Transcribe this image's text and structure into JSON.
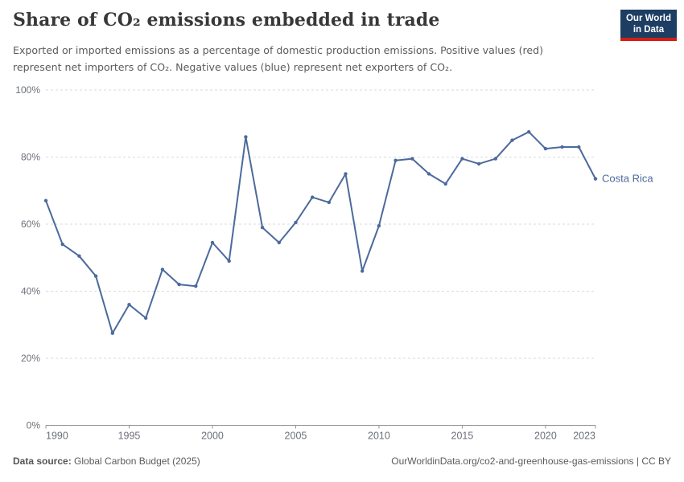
{
  "header": {
    "title": "Share of CO₂ emissions embedded in trade",
    "subtitle": "Exported or imported emissions as a percentage of domestic production emissions. Positive values (red) represent net importers of CO₂. Negative values (blue) represent net exporters of CO₂.",
    "logo": {
      "line1": "Our World",
      "line2": "in Data",
      "bg_color": "#1d3d63",
      "bar_color": "#d21e13"
    }
  },
  "chart_data": {
    "type": "line",
    "title": "Share of CO₂ emissions embedded in trade",
    "xlabel": "",
    "ylabel": "",
    "ylabel_suffix": "%",
    "xlim": [
      1990,
      2023
    ],
    "ylim": [
      0,
      100
    ],
    "yticks": [
      0,
      20,
      40,
      60,
      80,
      100
    ],
    "xticks": [
      1990,
      1995,
      2000,
      2005,
      2010,
      2015,
      2020,
      2023
    ],
    "grid": "horizontal-dashed",
    "legend_position": "end-of-line-label",
    "x": [
      1990,
      1991,
      1992,
      1993,
      1994,
      1995,
      1996,
      1997,
      1998,
      1999,
      2000,
      2001,
      2002,
      2003,
      2004,
      2005,
      2006,
      2007,
      2008,
      2009,
      2010,
      2011,
      2012,
      2013,
      2014,
      2015,
      2016,
      2017,
      2018,
      2019,
      2020,
      2021,
      2022,
      2023
    ],
    "series": [
      {
        "name": "Costa Rica",
        "color": "#4c6a9c",
        "values": [
          67,
          54,
          50.5,
          44.5,
          27.5,
          36,
          32,
          46.5,
          42,
          41.5,
          54.5,
          49,
          86,
          59,
          54.5,
          60.5,
          68,
          66.5,
          75,
          46,
          59.5,
          79,
          79.5,
          75,
          72,
          79.5,
          78,
          79.5,
          85,
          87.5,
          82.5,
          83,
          83,
          73.5
        ]
      }
    ]
  },
  "footer": {
    "datasource_label": "Data source:",
    "datasource_value": " Global Carbon Budget (2025)",
    "credit": "OurWorldinData.org/co2-and-greenhouse-gas-emissions | CC BY"
  }
}
